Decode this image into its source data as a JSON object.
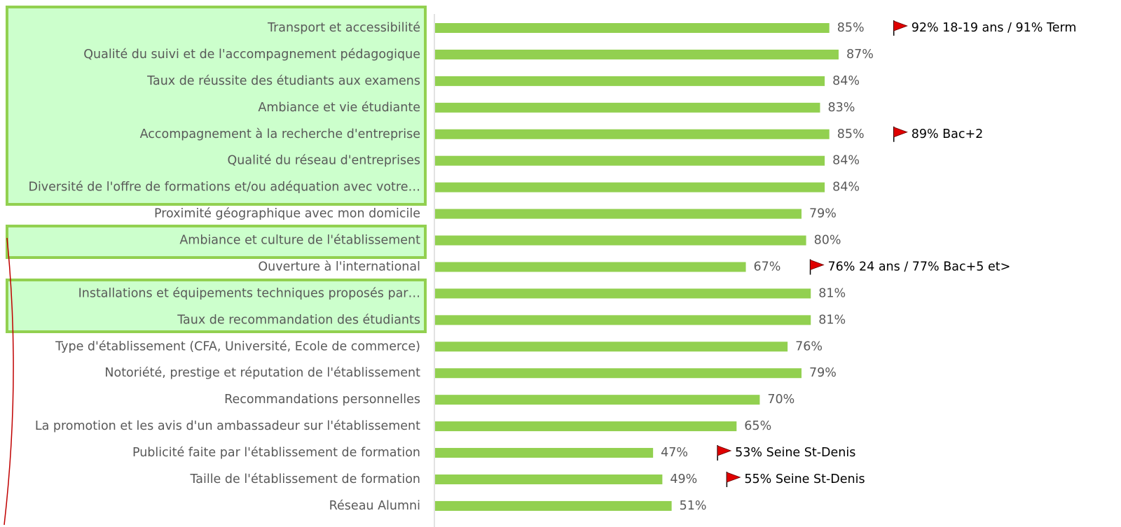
{
  "chart_data": {
    "type": "barh",
    "categories": [
      "Transport et accessibilité",
      "Qualité du suivi et de l'accompagnement pédagogique",
      "Taux de réussite des étudiants aux examens",
      "Ambiance et vie étudiante",
      "Accompagnement à la recherche d'entreprise",
      "Qualité du réseau d'entreprises",
      "Diversité de l'offre de formations et/ou adéquation avec votre…",
      "Proximité géographique avec mon domicile",
      "Ambiance et culture de l'établissement",
      "Ouverture à l'international",
      "Installations et équipements techniques proposés par…",
      "Taux de recommandation des étudiants",
      "Type d'établissement (CFA, Université, Ecole de commerce)",
      "Notoriété, prestige et réputation de l'établissement",
      "Recommandations personnelles",
      "La promotion et les avis d'un ambassadeur sur l'établissement",
      "Publicité faite par l'établissement de formation",
      "Taille de l'établissement de formation",
      "Réseau Alumni"
    ],
    "values": [
      85,
      87,
      84,
      83,
      85,
      84,
      84,
      79,
      80,
      67,
      81,
      81,
      76,
      79,
      70,
      65,
      47,
      49,
      51
    ],
    "value_labels": [
      "85%",
      "87%",
      "84%",
      "83%",
      "85%",
      "84%",
      "84%",
      "79%",
      "80%",
      "67%",
      "81%",
      "81%",
      "76%",
      "79%",
      "70%",
      "65%",
      "47%",
      "49%",
      "51%"
    ],
    "color": "#92d050",
    "xlim": [
      0,
      100
    ],
    "annotations": [
      {
        "category": "Transport et accessibilité",
        "text": "92% 18-19 ans / 91% Term"
      },
      {
        "category": "Accompagnement à la recherche d'entreprise",
        "text": "89% Bac+2"
      },
      {
        "category": "Ouverture à l'international",
        "text": "76% 24 ans / 77% Bac+5 et>"
      },
      {
        "category": "Publicité faite par l'établissement de formation",
        "text": "53% Seine St-Denis"
      },
      {
        "category": "Taille de l'établissement de formation",
        "text": "55% Seine St-Denis"
      }
    ]
  }
}
